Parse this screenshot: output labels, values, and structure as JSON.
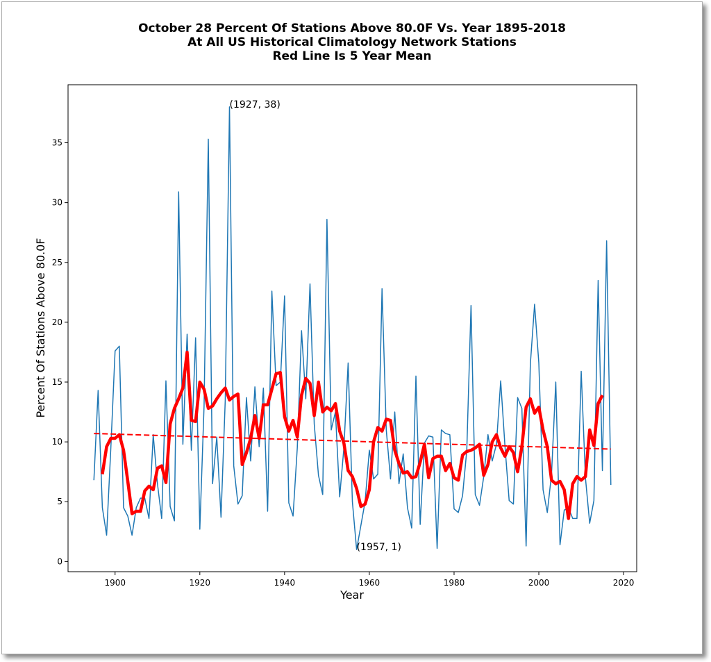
{
  "chart_data": {
    "type": "line",
    "title_lines": [
      "October 28 Percent Of Stations Above 80.0F Vs. Year 1895-2018",
      "At All US Historical Climatology Network Stations",
      "Red Line Is 5 Year Mean"
    ],
    "xlabel": "Year",
    "ylabel": "Percent Of Stations Above 80.0F",
    "xlim": [
      1888.9,
      2023.1
    ],
    "ylim": [
      -0.85,
      39.85
    ],
    "xticks": [
      1900,
      1920,
      1940,
      1960,
      1980,
      2000,
      2020
    ],
    "yticks": [
      0,
      5,
      10,
      15,
      20,
      25,
      30,
      35
    ],
    "series": [
      {
        "color": "#1f77b4",
        "width": 1.5,
        "dashed": false,
        "x": [
          1895,
          1896,
          1897,
          1898,
          1899,
          1900,
          1901,
          1902,
          1903,
          1904,
          1905,
          1906,
          1907,
          1908,
          1909,
          1910,
          1911,
          1912,
          1913,
          1914,
          1915,
          1916,
          1917,
          1918,
          1919,
          1920,
          1921,
          1922,
          1923,
          1924,
          1925,
          1926,
          1927,
          1928,
          1929,
          1930,
          1931,
          1932,
          1933,
          1934,
          1935,
          1936,
          1937,
          1938,
          1939,
          1940,
          1941,
          1942,
          1943,
          1944,
          1945,
          1946,
          1947,
          1948,
          1949,
          1950,
          1951,
          1952,
          1953,
          1954,
          1955,
          1956,
          1957,
          1958,
          1959,
          1960,
          1961,
          1962,
          1963,
          1964,
          1965,
          1966,
          1967,
          1968,
          1969,
          1970,
          1971,
          1972,
          1973,
          1974,
          1975,
          1976,
          1977,
          1978,
          1979,
          1980,
          1981,
          1982,
          1983,
          1984,
          1985,
          1986,
          1987,
          1988,
          1989,
          1990,
          1991,
          1992,
          1993,
          1994,
          1995,
          1996,
          1997,
          1998,
          1999,
          2000,
          2001,
          2002,
          2003,
          2004,
          2005,
          2006,
          2007,
          2008,
          2009,
          2010,
          2011,
          2012,
          2013,
          2014,
          2015,
          2016,
          2017
        ],
        "values": [
          6.8,
          14.3,
          4.5,
          2.2,
          9.5,
          17.6,
          18.0,
          4.5,
          3.8,
          2.2,
          4.5,
          5.3,
          5.3,
          3.6,
          10.6,
          6.5,
          3.6,
          15.1,
          4.6,
          3.4,
          30.9,
          9.8,
          19.0,
          9.3,
          18.7,
          2.7,
          13.0,
          35.3,
          6.5,
          10.4,
          3.7,
          13.5,
          38.0,
          8.0,
          4.8,
          5.5,
          13.7,
          8.4,
          14.6,
          9.6,
          14.5,
          4.2,
          22.6,
          14.7,
          15.0,
          22.2,
          4.9,
          3.8,
          9.5,
          19.3,
          13.6,
          23.2,
          11.5,
          7.2,
          5.6,
          28.6,
          11.0,
          12.5,
          5.4,
          9.5,
          16.6,
          5.0,
          1.0,
          3.0,
          5.0,
          9.3,
          6.9,
          7.3,
          22.8,
          11.0,
          6.9,
          12.5,
          6.5,
          9.0,
          4.5,
          2.8,
          15.5,
          3.1,
          9.9,
          10.5,
          10.4,
          1.1,
          11.0,
          10.7,
          10.6,
          4.4,
          4.1,
          5.5,
          9.3,
          21.4,
          5.6,
          4.7,
          7.1,
          10.6,
          8.4,
          9.8,
          15.1,
          9.7,
          5.1,
          4.8,
          13.7,
          12.8,
          1.3,
          16.5,
          21.5,
          16.6,
          6.0,
          4.1,
          7.3,
          15.0,
          1.4,
          4.3,
          4.5,
          3.6,
          3.6,
          15.9,
          7.0,
          3.2,
          5.1,
          23.5,
          7.6,
          26.8,
          6.4
        ]
      },
      {
        "color": "#ff0000",
        "width": 4.5,
        "dashed": false,
        "x": [
          1897,
          1898,
          1899,
          1900,
          1901,
          1902,
          1903,
          1904,
          1905,
          1906,
          1907,
          1908,
          1909,
          1910,
          1911,
          1912,
          1913,
          1914,
          1915,
          1916,
          1917,
          1918,
          1919,
          1920,
          1921,
          1922,
          1923,
          1924,
          1925,
          1926,
          1927,
          1928,
          1929,
          1930,
          1931,
          1932,
          1933,
          1934,
          1935,
          1936,
          1937,
          1938,
          1939,
          1940,
          1941,
          1942,
          1943,
          1944,
          1945,
          1946,
          1947,
          1948,
          1949,
          1950,
          1951,
          1952,
          1953,
          1954,
          1955,
          1956,
          1957,
          1958,
          1959,
          1960,
          1961,
          1962,
          1963,
          1964,
          1965,
          1966,
          1967,
          1968,
          1969,
          1970,
          1971,
          1972,
          1973,
          1974,
          1975,
          1976,
          1977,
          1978,
          1979,
          1980,
          1981,
          1982,
          1983,
          1984,
          1985,
          1986,
          1987,
          1988,
          1989,
          1990,
          1991,
          1992,
          1993,
          1994,
          1995,
          1996,
          1997,
          1998,
          1999,
          2000,
          2001,
          2002,
          2003,
          2004,
          2005,
          2006,
          2007,
          2008,
          2009,
          2010,
          2011,
          2012,
          2013,
          2014,
          2015
        ],
        "values": [
          7.3,
          9.6,
          10.3,
          10.3,
          10.6,
          9.3,
          6.7,
          4.0,
          4.2,
          4.2,
          5.9,
          6.3,
          6.0,
          7.8,
          8.0,
          6.6,
          11.5,
          12.8,
          13.6,
          14.5,
          17.5,
          11.8,
          11.7,
          15.0,
          14.4,
          12.8,
          13.0,
          13.6,
          14.1,
          14.5,
          13.5,
          13.8,
          14.0,
          8.1,
          9.1,
          10.3,
          12.2,
          10.3,
          13.1,
          13.1,
          14.4,
          15.7,
          15.8,
          12.1,
          10.9,
          11.8,
          10.4,
          13.9,
          15.3,
          14.9,
          12.2,
          15.0,
          12.5,
          12.9,
          12.6,
          13.2,
          10.9,
          9.9,
          7.6,
          7.1,
          6.1,
          4.6,
          4.8,
          6.0,
          10.0,
          11.2,
          10.9,
          11.9,
          11.8,
          9.3,
          8.2,
          7.4,
          7.5,
          7.0,
          7.1,
          8.3,
          9.8,
          7.0,
          8.6,
          8.8,
          8.8,
          7.6,
          8.2,
          7.0,
          6.8,
          8.9,
          9.2,
          9.3,
          9.5,
          9.8,
          7.2,
          8.1,
          10.0,
          10.6,
          9.5,
          8.8,
          9.6,
          9.1,
          7.5,
          9.6,
          12.9,
          13.6,
          12.4,
          12.9,
          11.0,
          9.6,
          6.8,
          6.5,
          6.7,
          6.0,
          3.6,
          6.5,
          7.1,
          6.8,
          7.1,
          11.0,
          9.7,
          13.2,
          13.9
        ]
      },
      {
        "color": "#ff0000",
        "width": 2,
        "dashed": true,
        "x": [
          1895,
          2017
        ],
        "values": [
          10.7,
          9.4
        ]
      }
    ],
    "annotations": [
      {
        "text": "(1927, 38)",
        "x": 1927,
        "y": 38
      },
      {
        "text": "(1957, 1)",
        "x": 1957,
        "y": 1
      }
    ]
  }
}
